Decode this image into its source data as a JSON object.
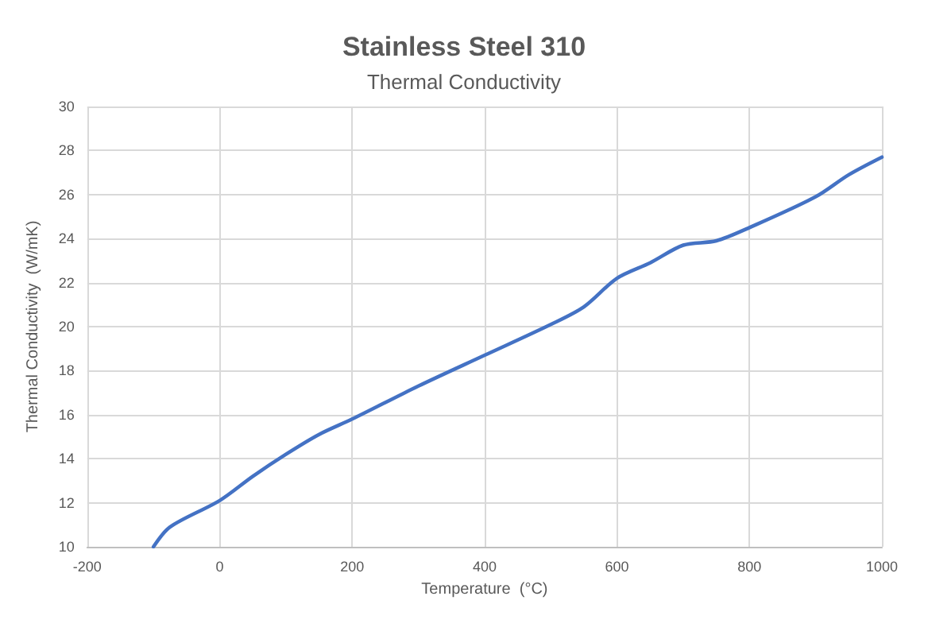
{
  "chart_data": {
    "type": "line",
    "title": "Stainless Steel 310",
    "subtitle": "Thermal Conductivity",
    "xlabel": "Temperature  (°C)",
    "ylabel": "Thermal Conductivity  (W/mK)",
    "x": [
      -100,
      -75,
      0,
      50,
      100,
      150,
      200,
      300,
      400,
      500,
      550,
      600,
      650,
      700,
      750,
      800,
      900,
      950,
      1000
    ],
    "series": [
      {
        "color": "#4472c4",
        "values": [
          10,
          10.9,
          12.1,
          13.2,
          14.2,
          15.1,
          15.8,
          17.3,
          18.7,
          20.1,
          20.9,
          22.2,
          22.9,
          23.7,
          23.9,
          24.5,
          25.9,
          26.9,
          27.7
        ]
      }
    ],
    "xlim": [
      -200,
      1000
    ],
    "xticks": [
      -200,
      0,
      200,
      400,
      600,
      800,
      1000
    ],
    "ylim": [
      10,
      30
    ],
    "yticks": [
      10,
      12,
      14,
      16,
      18,
      20,
      22,
      24,
      26,
      28,
      30
    ],
    "grid": true,
    "marker": "none",
    "line_style": "solid"
  }
}
